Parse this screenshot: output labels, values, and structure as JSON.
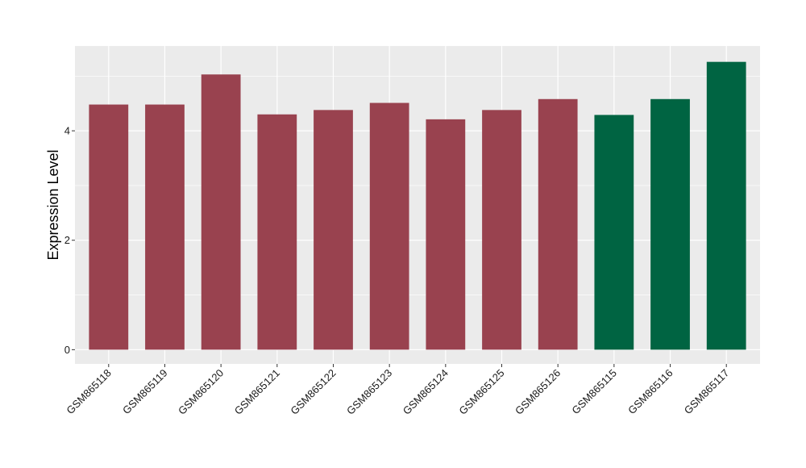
{
  "chart_data": {
    "type": "bar",
    "title": "",
    "xlabel": "",
    "ylabel": "Expression Level",
    "categories": [
      "GSM865118",
      "GSM865119",
      "GSM865120",
      "GSM865121",
      "GSM865122",
      "GSM865123",
      "GSM865124",
      "GSM865125",
      "GSM865126",
      "GSM865115",
      "GSM865116",
      "GSM865117"
    ],
    "values": [
      4.48,
      4.48,
      5.03,
      4.3,
      4.38,
      4.51,
      4.21,
      4.38,
      4.58,
      4.29,
      4.58,
      5.26
    ],
    "bar_colors": [
      "#99424f",
      "#99424f",
      "#99424f",
      "#99424f",
      "#99424f",
      "#99424f",
      "#99424f",
      "#99424f",
      "#99424f",
      "#006442",
      "#006442",
      "#006442"
    ],
    "yticks": [
      0,
      2,
      4
    ],
    "ylim": [
      -0.26,
      5.55
    ],
    "grid": true,
    "legend": "none",
    "panel_background": "#ebebeb",
    "grid_color": "#ffffff"
  }
}
